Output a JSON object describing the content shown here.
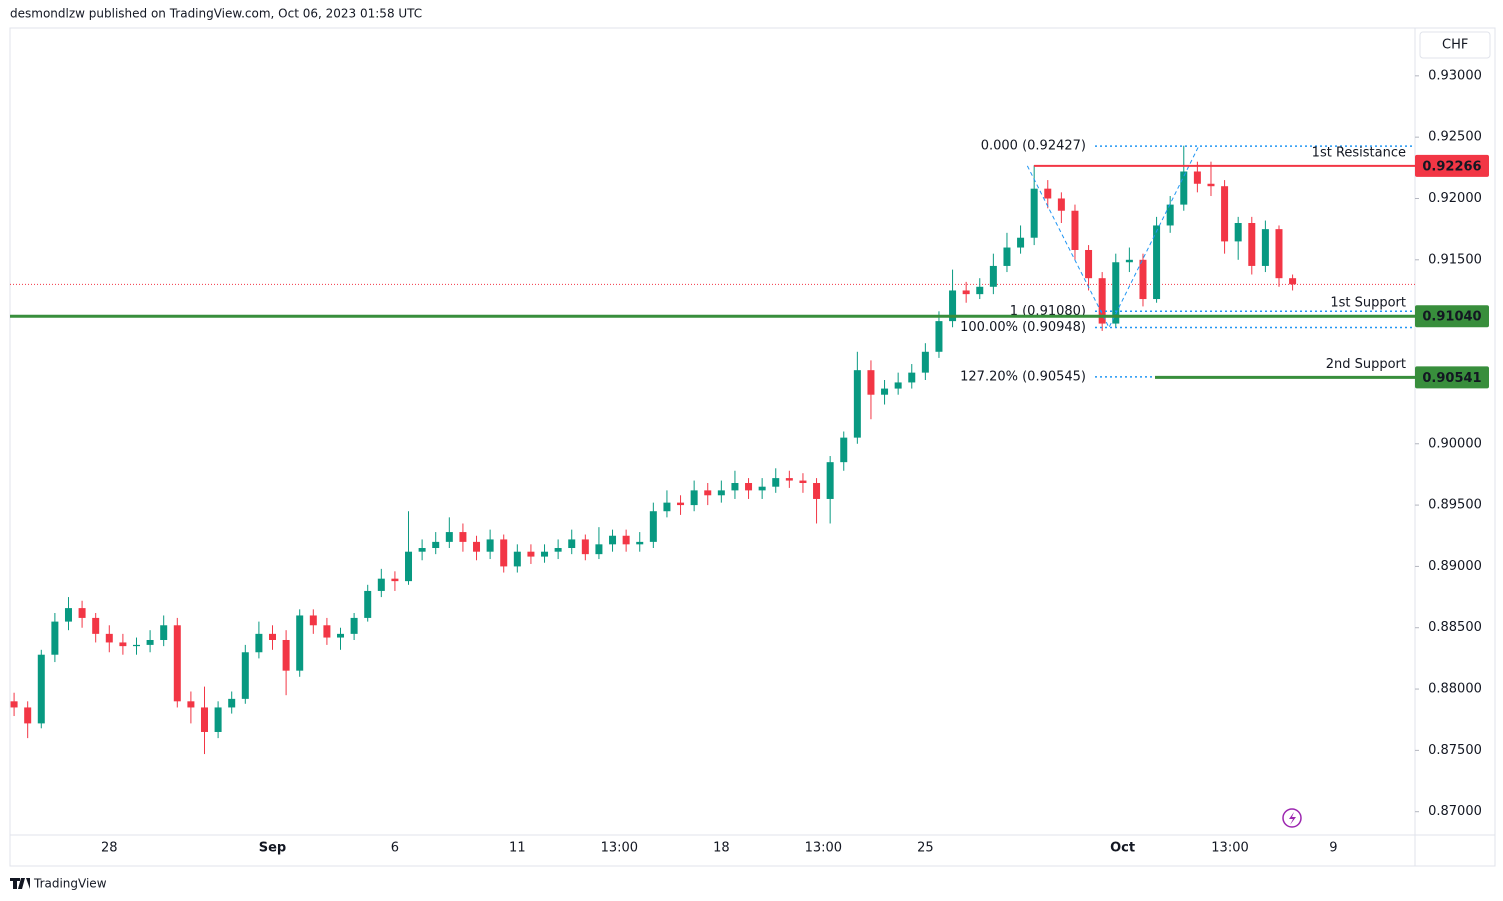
{
  "header": {
    "text": "desmondlzw published on TradingView.com, Oct 06, 2023 01:58 UTC"
  },
  "footer": {
    "text": "TradingView"
  },
  "chart_data": {
    "type": "candlestick",
    "currency": "CHF",
    "colors": {
      "up": "#089981",
      "down": "#f23645"
    },
    "xlim": [
      -0.3,
      103
    ],
    "ylim": [
      0.8681,
      0.9339
    ],
    "yticks": [
      {
        "value": 0.87,
        "label": "0.87000"
      },
      {
        "value": 0.875,
        "label": "0.87500"
      },
      {
        "value": 0.88,
        "label": "0.88000"
      },
      {
        "value": 0.885,
        "label": "0.88500"
      },
      {
        "value": 0.89,
        "label": "0.89000"
      },
      {
        "value": 0.895,
        "label": "0.89500"
      },
      {
        "value": 0.9,
        "label": "0.90000"
      },
      {
        "value": 0.905,
        "label": "0.90500"
      },
      {
        "value": 0.91,
        "label": "0.91000"
      },
      {
        "value": 0.915,
        "label": "0.91500"
      },
      {
        "value": 0.92,
        "label": "0.92000"
      },
      {
        "value": 0.925,
        "label": "0.92500"
      },
      {
        "value": 0.93,
        "label": "0.93000"
      }
    ],
    "xticks": [
      {
        "value": 7,
        "label": "28"
      },
      {
        "value": 19,
        "label": "Sep"
      },
      {
        "value": 28,
        "label": "6"
      },
      {
        "value": 37,
        "label": "11"
      },
      {
        "value": 44.5,
        "label": "13:00"
      },
      {
        "value": 52,
        "label": "18"
      },
      {
        "value": 59.5,
        "label": "13:00"
      },
      {
        "value": 67,
        "label": "25"
      },
      {
        "value": 81.5,
        "label": "Oct"
      },
      {
        "value": 89.4,
        "label": "13:00"
      },
      {
        "value": 97,
        "label": "9"
      }
    ],
    "open": [
      0.879,
      0.8785,
      0.8772,
      0.8828,
      0.8855,
      0.8866,
      0.8858,
      0.8845,
      0.8838,
      0.8835,
      0.8836,
      0.884,
      0.8852,
      0.879,
      0.8785,
      0.8765,
      0.8785,
      0.8792,
      0.883,
      0.8845,
      0.884,
      0.8815,
      0.886,
      0.8852,
      0.8842,
      0.8845,
      0.8858,
      0.888,
      0.889,
      0.8888,
      0.8912,
      0.8915,
      0.892,
      0.8928,
      0.892,
      0.8912,
      0.8922,
      0.89,
      0.8912,
      0.8908,
      0.8912,
      0.8915,
      0.8922,
      0.891,
      0.8918,
      0.8925,
      0.8918,
      0.892,
      0.8945,
      0.8952,
      0.895,
      0.8962,
      0.8958,
      0.8962,
      0.8968,
      0.8962,
      0.8965,
      0.8972,
      0.897,
      0.8968,
      0.8955,
      0.8985,
      0.9005,
      0.906,
      0.904,
      0.9045,
      0.905,
      0.9058,
      0.9075,
      0.91,
      0.9125,
      0.9122,
      0.9128,
      0.9145,
      0.916,
      0.9168,
      0.9208,
      0.92,
      0.919,
      0.9158,
      0.9135,
      0.9098,
      0.9148,
      0.915,
      0.9118,
      0.9178,
      0.9195,
      0.9222,
      0.9212,
      0.921,
      0.9165,
      0.918,
      0.9145,
      0.9175,
      0.9135
    ],
    "high": [
      0.8797,
      0.879,
      0.8832,
      0.8862,
      0.8875,
      0.8872,
      0.8862,
      0.8852,
      0.8845,
      0.8842,
      0.8848,
      0.886,
      0.8858,
      0.8798,
      0.8802,
      0.879,
      0.8798,
      0.8836,
      0.8855,
      0.8852,
      0.8848,
      0.8865,
      0.8865,
      0.8858,
      0.885,
      0.8862,
      0.8885,
      0.8898,
      0.8896,
      0.8945,
      0.8922,
      0.8928,
      0.894,
      0.8935,
      0.8925,
      0.893,
      0.8926,
      0.8918,
      0.8918,
      0.8918,
      0.8922,
      0.893,
      0.8926,
      0.8932,
      0.893,
      0.893,
      0.8928,
      0.8952,
      0.8962,
      0.8958,
      0.897,
      0.8968,
      0.897,
      0.8978,
      0.8972,
      0.8972,
      0.898,
      0.8978,
      0.8976,
      0.8972,
      0.899,
      0.901,
      0.9075,
      0.9068,
      0.9052,
      0.9058,
      0.9065,
      0.9082,
      0.9108,
      0.9142,
      0.9132,
      0.9135,
      0.9155,
      0.9172,
      0.9178,
      0.9227,
      0.9215,
      0.9205,
      0.9195,
      0.9162,
      0.914,
      0.9155,
      0.916,
      0.9155,
      0.9185,
      0.9202,
      0.9243,
      0.923,
      0.923,
      0.9215,
      0.9185,
      0.9185,
      0.9182,
      0.9178,
      0.9138
    ],
    "low": [
      0.8778,
      0.876,
      0.8768,
      0.8822,
      0.8848,
      0.885,
      0.8838,
      0.883,
      0.8828,
      0.8828,
      0.883,
      0.8835,
      0.8785,
      0.8772,
      0.8747,
      0.876,
      0.878,
      0.8788,
      0.8825,
      0.8832,
      0.8795,
      0.881,
      0.8845,
      0.8836,
      0.8832,
      0.884,
      0.8855,
      0.8875,
      0.888,
      0.8885,
      0.8905,
      0.891,
      0.8915,
      0.8912,
      0.8905,
      0.8906,
      0.8895,
      0.8895,
      0.8902,
      0.8903,
      0.8906,
      0.891,
      0.8905,
      0.8906,
      0.8912,
      0.8912,
      0.8912,
      0.8915,
      0.894,
      0.8942,
      0.8945,
      0.895,
      0.8952,
      0.8955,
      0.8955,
      0.8955,
      0.896,
      0.8964,
      0.896,
      0.8935,
      0.8935,
      0.8978,
      0.9,
      0.902,
      0.9032,
      0.904,
      0.9045,
      0.9052,
      0.907,
      0.9095,
      0.9115,
      0.9118,
      0.9122,
      0.914,
      0.9155,
      0.9162,
      0.9192,
      0.918,
      0.915,
      0.9125,
      0.9092,
      0.9095,
      0.914,
      0.9112,
      0.9115,
      0.9172,
      0.919,
      0.9205,
      0.9202,
      0.9155,
      0.915,
      0.9138,
      0.914,
      0.9128,
      0.9125
    ],
    "close": [
      0.8785,
      0.8772,
      0.8828,
      0.8855,
      0.8866,
      0.8858,
      0.8845,
      0.8838,
      0.8835,
      0.8836,
      0.884,
      0.8852,
      0.879,
      0.8785,
      0.8765,
      0.8785,
      0.8792,
      0.883,
      0.8845,
      0.884,
      0.8815,
      0.886,
      0.8852,
      0.8842,
      0.8845,
      0.8858,
      0.888,
      0.889,
      0.8888,
      0.8912,
      0.8915,
      0.892,
      0.8928,
      0.892,
      0.8912,
      0.8922,
      0.89,
      0.8912,
      0.8908,
      0.8912,
      0.8915,
      0.8922,
      0.891,
      0.8918,
      0.8925,
      0.8918,
      0.892,
      0.8945,
      0.8952,
      0.895,
      0.8962,
      0.8958,
      0.8962,
      0.8968,
      0.8962,
      0.8965,
      0.8972,
      0.897,
      0.8968,
      0.8955,
      0.8985,
      0.9005,
      0.906,
      0.904,
      0.9045,
      0.905,
      0.9058,
      0.9075,
      0.91,
      0.9125,
      0.9122,
      0.9128,
      0.9145,
      0.916,
      0.9168,
      0.9208,
      0.92,
      0.919,
      0.9158,
      0.9135,
      0.9098,
      0.9148,
      0.915,
      0.9118,
      0.9178,
      0.9195,
      0.9222,
      0.9212,
      0.921,
      0.9165,
      0.918,
      0.9145,
      0.9175,
      0.9135,
      0.913
    ],
    "last_price": {
      "value": 0.913,
      "color": "#f23645"
    },
    "levels": [
      {
        "name": "1st Resistance",
        "value": 0.92266,
        "label": "0.92266",
        "color": "#f23645"
      },
      {
        "name": "1st Support",
        "value": 0.9104,
        "label": "0.91040",
        "color": "#388e3c"
      },
      {
        "name": "2nd Support",
        "value": 0.90541,
        "label": "0.90541",
        "color": "#388e3c"
      }
    ],
    "fib": {
      "color": "#2196f3",
      "levels": [
        {
          "value": 0.92427,
          "label": "0.000 (0.92427)"
        },
        {
          "value": 0.9108,
          "label": "1 (0.91080)"
        },
        {
          "value": 0.90948,
          "label": "100.00% (0.90948)"
        },
        {
          "value": 0.90545,
          "label": "127.20% (0.90545)"
        }
      ]
    },
    "pattern": {
      "color": "#2196f3",
      "x": [
        74.5,
        80.5,
        87.1
      ],
      "y": [
        0.92266,
        0.90948,
        0.92427
      ]
    }
  }
}
